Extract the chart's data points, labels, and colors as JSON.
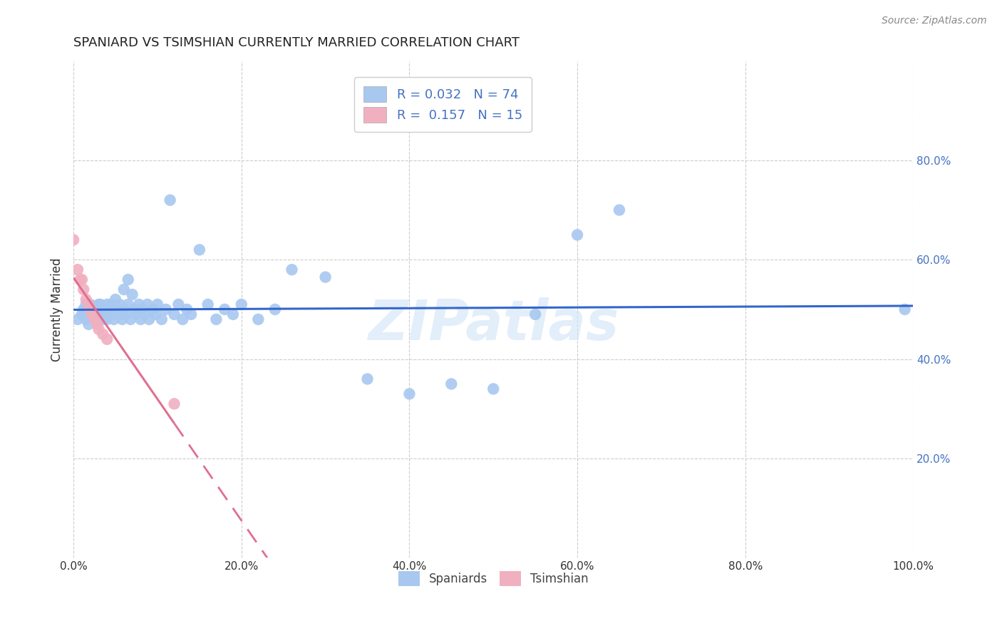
{
  "title": "SPANIARD VS TSIMSHIAN CURRENTLY MARRIED CORRELATION CHART",
  "source_text": "Source: ZipAtlas.com",
  "ylabel": "Currently Married",
  "xlim": [
    0.0,
    1.0
  ],
  "ylim": [
    0.0,
    1.0
  ],
  "xtick_vals": [
    0.0,
    0.2,
    0.4,
    0.6,
    0.8,
    1.0
  ],
  "ytick_vals": [
    0.2,
    0.4,
    0.6,
    0.8
  ],
  "xtick_labels": [
    "0.0%",
    "20.0%",
    "40.0%",
    "60.0%",
    "80.0%",
    "100.0%"
  ],
  "ytick_labels": [
    "20.0%",
    "40.0%",
    "60.0%",
    "80.0%"
  ],
  "grid_color": "#cccccc",
  "background_color": "#ffffff",
  "spaniard_color": "#a8c8f0",
  "tsimshian_color": "#f0b0c0",
  "spaniard_line_color": "#3366cc",
  "tsimshian_line_color": "#e07090",
  "tick_color": "#4472c4",
  "legend_R_spaniard": "0.032",
  "legend_N_spaniard": "74",
  "legend_R_tsimshian": "0.157",
  "legend_N_tsimshian": "15",
  "watermark": "ZIPatlas",
  "spaniard_x": [
    0.005,
    0.01,
    0.012,
    0.015,
    0.015,
    0.018,
    0.02,
    0.02,
    0.022,
    0.025,
    0.025,
    0.028,
    0.03,
    0.03,
    0.032,
    0.032,
    0.035,
    0.035,
    0.038,
    0.04,
    0.04,
    0.042,
    0.045,
    0.045,
    0.048,
    0.05,
    0.05,
    0.055,
    0.055,
    0.058,
    0.06,
    0.06,
    0.062,
    0.065,
    0.065,
    0.068,
    0.07,
    0.072,
    0.075,
    0.078,
    0.08,
    0.082,
    0.085,
    0.088,
    0.09,
    0.095,
    0.098,
    0.1,
    0.105,
    0.11,
    0.115,
    0.12,
    0.125,
    0.13,
    0.135,
    0.14,
    0.15,
    0.16,
    0.17,
    0.18,
    0.19,
    0.2,
    0.22,
    0.24,
    0.26,
    0.3,
    0.35,
    0.4,
    0.45,
    0.5,
    0.55,
    0.6,
    0.65,
    0.99
  ],
  "spaniard_y": [
    0.48,
    0.49,
    0.5,
    0.48,
    0.51,
    0.47,
    0.49,
    0.51,
    0.5,
    0.48,
    0.5,
    0.49,
    0.51,
    0.48,
    0.49,
    0.51,
    0.5,
    0.48,
    0.49,
    0.51,
    0.48,
    0.5,
    0.49,
    0.51,
    0.48,
    0.5,
    0.52,
    0.49,
    0.51,
    0.48,
    0.5,
    0.54,
    0.49,
    0.51,
    0.56,
    0.48,
    0.53,
    0.5,
    0.49,
    0.51,
    0.48,
    0.5,
    0.49,
    0.51,
    0.48,
    0.5,
    0.49,
    0.51,
    0.48,
    0.5,
    0.72,
    0.49,
    0.51,
    0.48,
    0.5,
    0.49,
    0.62,
    0.51,
    0.48,
    0.5,
    0.49,
    0.51,
    0.48,
    0.5,
    0.58,
    0.565,
    0.36,
    0.33,
    0.35,
    0.34,
    0.49,
    0.65,
    0.7,
    0.5
  ],
  "tsimshian_x": [
    0.0,
    0.005,
    0.008,
    0.01,
    0.012,
    0.015,
    0.018,
    0.02,
    0.022,
    0.025,
    0.028,
    0.03,
    0.035,
    0.04,
    0.12
  ],
  "tsimshian_y": [
    0.64,
    0.58,
    0.56,
    0.56,
    0.54,
    0.52,
    0.51,
    0.5,
    0.49,
    0.48,
    0.47,
    0.46,
    0.45,
    0.44,
    0.31
  ]
}
